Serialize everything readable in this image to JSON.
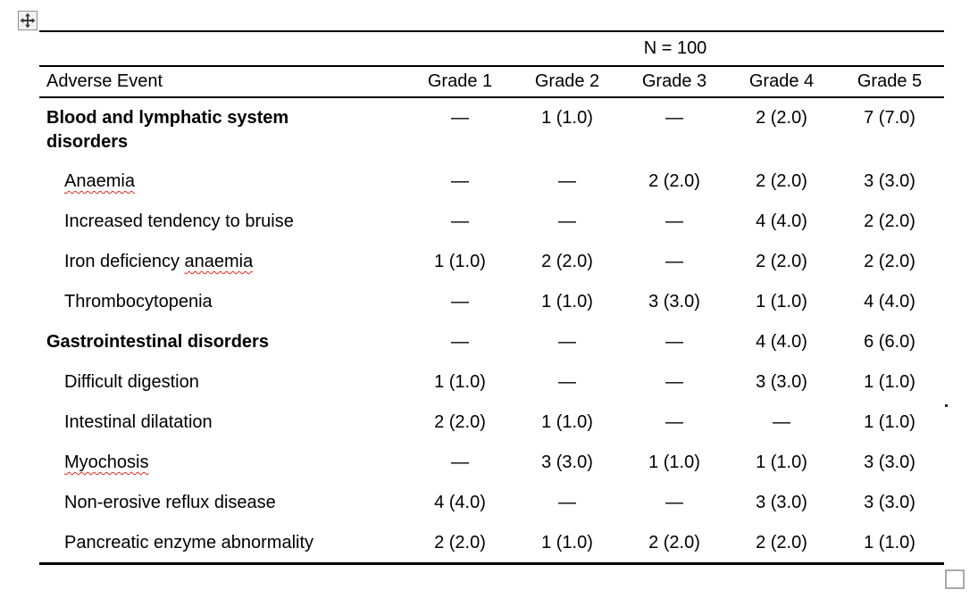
{
  "colors": {
    "table_border": "#000000",
    "spellcheck_underline": "#e02b1e",
    "handle_border": "#8f8f8f",
    "handle_background": "#f2f2f2"
  },
  "icons": {
    "move_handle": "move-cross-arrows-icon",
    "resize_handle": "resize-square-handle"
  },
  "table": {
    "group_header": "N = 100",
    "first_column_header": "Adverse Event",
    "grade_headers": [
      "Grade 1",
      "Grade 2",
      "Grade 3",
      "Grade 4",
      "Grade 5"
    ],
    "rows": [
      {
        "segments": [
          {
            "text": "Blood and lymphatic system disorders",
            "wavy": false
          }
        ],
        "bold": true,
        "indent": false,
        "tall": true,
        "values": [
          "—",
          "1 (1.0)",
          "—",
          "2 (2.0)",
          "7 (7.0)"
        ]
      },
      {
        "segments": [
          {
            "text": "Anaemia",
            "wavy": true
          }
        ],
        "bold": false,
        "indent": true,
        "tall": false,
        "values": [
          "—",
          "—",
          "2 (2.0)",
          "2 (2.0)",
          "3 (3.0)"
        ]
      },
      {
        "segments": [
          {
            "text": "Increased tendency to bruise",
            "wavy": false
          }
        ],
        "bold": false,
        "indent": true,
        "tall": false,
        "values": [
          "—",
          "—",
          "—",
          "4 (4.0)",
          "2 (2.0)"
        ]
      },
      {
        "segments": [
          {
            "text": "Iron deficiency ",
            "wavy": false
          },
          {
            "text": "anaemia",
            "wavy": true
          }
        ],
        "bold": false,
        "indent": true,
        "tall": false,
        "values": [
          "1 (1.0)",
          "2 (2.0)",
          "—",
          "2 (2.0)",
          "2 (2.0)"
        ]
      },
      {
        "segments": [
          {
            "text": "Thrombocytopenia",
            "wavy": false
          }
        ],
        "bold": false,
        "indent": true,
        "tall": false,
        "values": [
          "—",
          "1 (1.0)",
          "3 (3.0)",
          "1 (1.0)",
          "4 (4.0)"
        ]
      },
      {
        "segments": [
          {
            "text": "Gastrointestinal disorders",
            "wavy": false
          }
        ],
        "bold": true,
        "indent": false,
        "tall": false,
        "values": [
          "—",
          "—",
          "—",
          "4 (4.0)",
          "6 (6.0)"
        ]
      },
      {
        "segments": [
          {
            "text": "Difficult digestion",
            "wavy": false
          }
        ],
        "bold": false,
        "indent": true,
        "tall": false,
        "values": [
          "1 (1.0)",
          "—",
          "—",
          "3 (3.0)",
          "1 (1.0)"
        ]
      },
      {
        "segments": [
          {
            "text": "Intestinal dilatation",
            "wavy": false
          }
        ],
        "bold": false,
        "indent": true,
        "tall": false,
        "values": [
          "2 (2.0)",
          "1 (1.0)",
          "—",
          "—",
          "1 (1.0)"
        ]
      },
      {
        "segments": [
          {
            "text": "Myochosis",
            "wavy": true
          }
        ],
        "bold": false,
        "indent": true,
        "tall": false,
        "values": [
          "—",
          "3 (3.0)",
          "1 (1.0)",
          "1 (1.0)",
          "3 (3.0)"
        ]
      },
      {
        "segments": [
          {
            "text": "Non-erosive reflux disease",
            "wavy": false
          }
        ],
        "bold": false,
        "indent": true,
        "tall": false,
        "values": [
          "4 (4.0)",
          "—",
          "—",
          "3 (3.0)",
          "3 (3.0)"
        ]
      },
      {
        "segments": [
          {
            "text": "Pancreatic enzyme abnormality",
            "wavy": false
          }
        ],
        "bold": false,
        "indent": true,
        "tall": false,
        "values": [
          "2 (2.0)",
          "1 (1.0)",
          "2 (2.0)",
          "2 (2.0)",
          "1 (1.0)"
        ]
      }
    ]
  }
}
